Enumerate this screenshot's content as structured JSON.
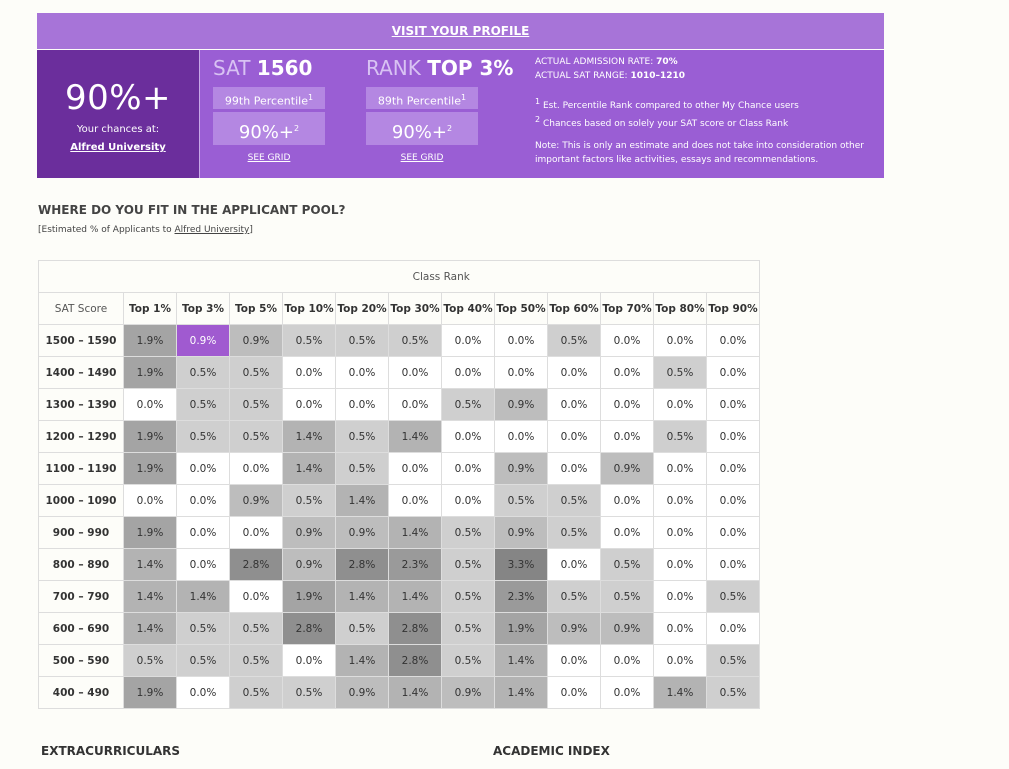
{
  "banner": {
    "link": "VISIT YOUR PROFILE"
  },
  "chance": {
    "value": "90%+",
    "label": "Your chances at:",
    "university": "Alfred University"
  },
  "sat": {
    "label": "SAT",
    "score": "1560",
    "percentile": "99th Percentile",
    "chance": "90%+",
    "see_grid": "SEE GRID"
  },
  "rank": {
    "label": "RANK",
    "value": "TOP 3%",
    "percentile": "89th Percentile",
    "chance": "90%+",
    "see_grid": "SEE GRID"
  },
  "info": {
    "admission_label": "ACTUAL ADMISSION RATE:",
    "admission_value": "70%",
    "sat_range_label": "ACTUAL SAT RANGE:",
    "sat_range_value": "1010–1210",
    "note1": "Est. Percentile Rank compared to other My Chance users",
    "note2": "Chances based on solely your SAT score or Class Rank",
    "note3": "Note: This is only an estimate and does not take into consideration other important factors like activities, essays and recommendations."
  },
  "pool": {
    "title": "WHERE DO YOU FIT IN THE APPLICANT POOL?",
    "subtitle_prefix": "[Estimated % of Applicants to ",
    "subtitle_uni": "Alfred University",
    "subtitle_suffix": "]",
    "class_rank_label": "Class Rank",
    "sat_label": "SAT Score",
    "columns": [
      "Top 1%",
      "Top 3%",
      "Top 5%",
      "Top 10%",
      "Top 20%",
      "Top 30%",
      "Top 40%",
      "Top 50%",
      "Top 60%",
      "Top 70%",
      "Top 80%",
      "Top 90%"
    ],
    "rows": [
      {
        "label": "1500 – 1590",
        "cells": [
          "1.9%",
          "0.9%",
          "0.9%",
          "0.5%",
          "0.5%",
          "0.5%",
          "0.0%",
          "0.0%",
          "0.5%",
          "0.0%",
          "0.0%",
          "0.0%"
        ]
      },
      {
        "label": "1400 – 1490",
        "cells": [
          "1.9%",
          "0.5%",
          "0.5%",
          "0.0%",
          "0.0%",
          "0.0%",
          "0.0%",
          "0.0%",
          "0.0%",
          "0.0%",
          "0.5%",
          "0.0%"
        ]
      },
      {
        "label": "1300 – 1390",
        "cells": [
          "0.0%",
          "0.5%",
          "0.5%",
          "0.0%",
          "0.0%",
          "0.0%",
          "0.5%",
          "0.9%",
          "0.0%",
          "0.0%",
          "0.0%",
          "0.0%"
        ]
      },
      {
        "label": "1200 – 1290",
        "cells": [
          "1.9%",
          "0.5%",
          "0.5%",
          "1.4%",
          "0.5%",
          "1.4%",
          "0.0%",
          "0.0%",
          "0.0%",
          "0.0%",
          "0.5%",
          "0.0%"
        ]
      },
      {
        "label": "1100 – 1190",
        "cells": [
          "1.9%",
          "0.0%",
          "0.0%",
          "1.4%",
          "0.5%",
          "0.0%",
          "0.0%",
          "0.9%",
          "0.0%",
          "0.9%",
          "0.0%",
          "0.0%"
        ]
      },
      {
        "label": "1000 – 1090",
        "cells": [
          "0.0%",
          "0.0%",
          "0.9%",
          "0.5%",
          "1.4%",
          "0.0%",
          "0.0%",
          "0.5%",
          "0.5%",
          "0.0%",
          "0.0%",
          "0.0%"
        ]
      },
      {
        "label": "900 – 990",
        "cells": [
          "1.9%",
          "0.0%",
          "0.0%",
          "0.9%",
          "0.9%",
          "1.4%",
          "0.5%",
          "0.9%",
          "0.5%",
          "0.0%",
          "0.0%",
          "0.0%"
        ]
      },
      {
        "label": "800 – 890",
        "cells": [
          "1.4%",
          "0.0%",
          "2.8%",
          "0.9%",
          "2.8%",
          "2.3%",
          "0.5%",
          "3.3%",
          "0.0%",
          "0.5%",
          "0.0%",
          "0.0%"
        ]
      },
      {
        "label": "700 – 790",
        "cells": [
          "1.4%",
          "1.4%",
          "0.0%",
          "1.9%",
          "1.4%",
          "1.4%",
          "0.5%",
          "2.3%",
          "0.5%",
          "0.5%",
          "0.0%",
          "0.5%"
        ]
      },
      {
        "label": "600 – 690",
        "cells": [
          "1.4%",
          "0.5%",
          "0.5%",
          "2.8%",
          "0.5%",
          "2.8%",
          "0.5%",
          "1.9%",
          "0.9%",
          "0.9%",
          "0.0%",
          "0.0%"
        ]
      },
      {
        "label": "500 – 590",
        "cells": [
          "0.5%",
          "0.5%",
          "0.5%",
          "0.0%",
          "1.4%",
          "2.8%",
          "0.5%",
          "1.4%",
          "0.0%",
          "0.0%",
          "0.0%",
          "0.5%"
        ]
      },
      {
        "label": "400 – 490",
        "cells": [
          "1.9%",
          "0.0%",
          "0.5%",
          "0.5%",
          "0.9%",
          "1.4%",
          "0.9%",
          "1.4%",
          "0.0%",
          "0.0%",
          "1.4%",
          "0.5%"
        ]
      }
    ],
    "highlight": {
      "row": 0,
      "col": 1,
      "color": "#a05ad0"
    }
  },
  "footer": {
    "extracurriculars": "EXTRACURRICULARS",
    "academic_index": "ACADEMIC INDEX"
  }
}
